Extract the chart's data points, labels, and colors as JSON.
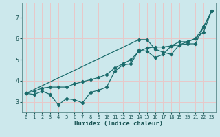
{
  "xlabel": "Humidex (Indice chaleur)",
  "xlim": [
    -0.5,
    23.5
  ],
  "ylim": [
    2.5,
    7.7
  ],
  "yticks": [
    3,
    4,
    5,
    6,
    7
  ],
  "xticks": [
    0,
    1,
    2,
    3,
    4,
    5,
    6,
    7,
    8,
    9,
    10,
    11,
    12,
    13,
    14,
    15,
    16,
    17,
    18,
    19,
    20,
    21,
    22,
    23
  ],
  "bg_color": "#cce8ec",
  "grid_color": "#e8c8c8",
  "line_color": "#1a6b6b",
  "line1_x": [
    0,
    1,
    2,
    3,
    4,
    5,
    6,
    7,
    8,
    9,
    10,
    11,
    12,
    13,
    14,
    15,
    16,
    17,
    18,
    19,
    20,
    21,
    22,
    23
  ],
  "line1_y": [
    3.4,
    3.35,
    3.5,
    3.35,
    2.85,
    3.15,
    3.1,
    2.95,
    3.45,
    3.55,
    3.7,
    4.45,
    4.75,
    4.8,
    5.45,
    5.4,
    5.1,
    5.25,
    5.65,
    5.85,
    5.85,
    6.0,
    6.55,
    7.3
  ],
  "line2_x": [
    0,
    1,
    2,
    3,
    4,
    5,
    6,
    7,
    8,
    9,
    10,
    11,
    12,
    13,
    14,
    15,
    16,
    17,
    18,
    19,
    20,
    21,
    22,
    23
  ],
  "line2_y": [
    3.4,
    3.5,
    3.65,
    3.7,
    3.7,
    3.7,
    3.85,
    3.95,
    4.05,
    4.15,
    4.3,
    4.6,
    4.8,
    5.0,
    5.4,
    5.55,
    5.6,
    5.6,
    5.65,
    5.7,
    5.85,
    6.0,
    6.3,
    7.3
  ],
  "line3_x": [
    0,
    14,
    15,
    16,
    17,
    18,
    19,
    20,
    21,
    22,
    23
  ],
  "line3_y": [
    3.4,
    5.95,
    5.95,
    5.5,
    5.35,
    5.25,
    5.7,
    5.75,
    5.75,
    6.55,
    7.3
  ]
}
